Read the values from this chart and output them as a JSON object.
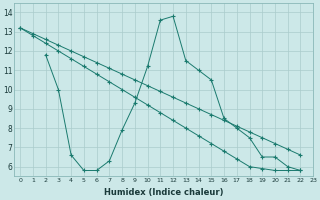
{
  "line1": {
    "x": [
      0,
      1,
      2,
      3,
      4,
      5,
      6,
      7,
      8,
      9,
      10,
      11,
      12,
      13,
      14,
      15,
      16,
      17,
      18,
      19,
      20,
      21,
      22
    ],
    "y": [
      13.2,
      12.9,
      12.6,
      12.3,
      12.0,
      11.7,
      11.4,
      11.1,
      10.8,
      10.5,
      10.2,
      9.9,
      9.6,
      9.3,
      9.0,
      8.7,
      8.4,
      8.1,
      7.8,
      7.5,
      7.2,
      6.9,
      6.6
    ]
  },
  "line2": {
    "x": [
      0,
      1,
      2,
      3,
      4,
      5,
      6,
      7,
      8,
      9,
      10,
      11,
      12,
      13,
      14,
      15,
      16,
      17,
      18,
      19,
      20,
      21,
      22
    ],
    "y": [
      13.2,
      12.8,
      12.4,
      12.0,
      11.6,
      11.2,
      10.8,
      10.4,
      10.0,
      9.6,
      9.2,
      8.8,
      8.4,
      8.0,
      7.6,
      7.2,
      6.8,
      6.4,
      6.0,
      5.9,
      5.8,
      5.8,
      5.8
    ]
  },
  "line3": {
    "x": [
      2,
      3,
      4,
      5,
      6,
      7,
      8,
      9,
      10,
      11,
      12,
      13,
      14,
      15,
      16,
      17,
      18,
      19,
      20,
      21,
      22
    ],
    "y": [
      11.8,
      10.0,
      6.6,
      5.8,
      5.8,
      6.3,
      7.9,
      9.3,
      11.2,
      13.6,
      13.8,
      11.5,
      11.0,
      10.5,
      8.5,
      8.0,
      7.5,
      6.5,
      6.5,
      6.0,
      5.8
    ]
  },
  "color": "#1a7a6e",
  "bg_color": "#cce8e8",
  "grid_color": "#aacccc",
  "xlabel": "Humidex (Indice chaleur)",
  "ylim": [
    5.5,
    14.5
  ],
  "xlim": [
    -0.5,
    23
  ],
  "yticks": [
    6,
    7,
    8,
    9,
    10,
    11,
    12,
    13,
    14
  ],
  "xticks": [
    0,
    1,
    2,
    3,
    4,
    5,
    6,
    7,
    8,
    9,
    10,
    11,
    12,
    13,
    14,
    15,
    16,
    17,
    18,
    19,
    20,
    21,
    22,
    23
  ]
}
